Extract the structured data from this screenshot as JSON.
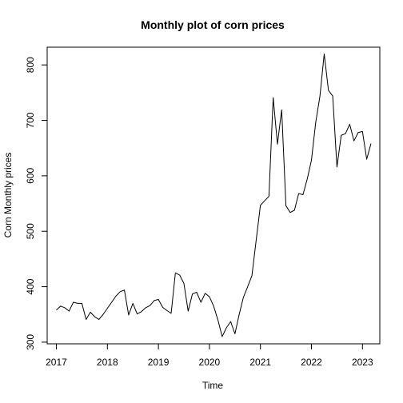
{
  "chart_data": {
    "type": "line",
    "title": "Monthly plot of corn prices",
    "xlabel": "Time",
    "ylabel": "Corn Monthly prices",
    "xlim": [
      2016.82,
      2023.34
    ],
    "ylim": [
      297,
      832
    ],
    "x_ticks": [
      2017,
      2018,
      2019,
      2020,
      2021,
      2022,
      2023
    ],
    "y_ticks": [
      300,
      400,
      500,
      600,
      700,
      800
    ],
    "grid": false,
    "start": 2017.0,
    "frequency": 12,
    "series": [
      {
        "color": "#000000",
        "values": [
          358,
          365,
          362,
          356,
          372,
          370,
          370,
          341,
          354,
          346,
          341,
          350,
          361,
          372,
          383,
          391,
          394,
          349,
          370,
          351,
          355,
          362,
          366,
          375,
          377,
          363,
          357,
          352,
          425,
          421,
          406,
          356,
          387,
          390,
          372,
          388,
          382,
          365,
          340,
          310,
          326,
          337,
          315,
          350,
          381,
          400,
          420,
          484,
          547,
          555,
          563,
          741,
          657,
          719,
          546,
          534,
          538,
          568,
          566,
          594,
          628,
          696,
          744,
          820,
          754,
          744,
          616,
          673,
          676,
          693,
          663,
          678,
          680,
          630,
          658
        ]
      }
    ]
  }
}
